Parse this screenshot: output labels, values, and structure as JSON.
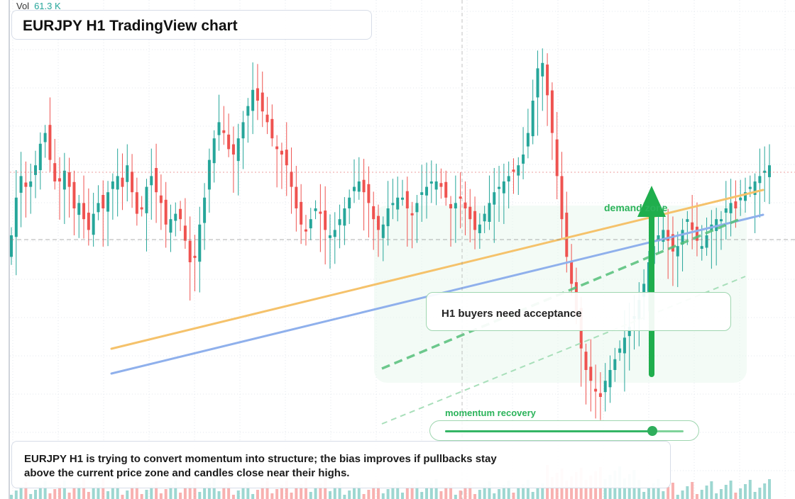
{
  "header": {
    "volume_label": "Vol",
    "volume_value": "61.3 K",
    "title": "EURJPY H1 TradingView chart"
  },
  "annotations": {
    "callout_text": "H1 buyers need acceptance",
    "zone_label": "demand zone",
    "momentum_label": "momentum recovery",
    "momentum_level": 0.87
  },
  "summary": {
    "text": "EURJPY H1 is trying to convert momentum into structure; the bias improves if pullbacks stay above the current price zone and candles close near their highs."
  },
  "colors": {
    "bull": "#26a69a",
    "bear": "#ef5350",
    "accent_green": "#2bb35a",
    "trend_orange": "#f5c26b",
    "trend_blue": "#8fb0ec"
  },
  "chart_data": {
    "type": "candlestick",
    "series_closes": [
      0.6,
      0.74,
      0.82,
      0.78,
      0.8,
      0.86,
      0.94,
      0.98,
      0.88,
      0.8,
      0.8,
      0.84,
      0.78,
      0.7,
      0.72,
      0.66,
      0.62,
      0.68,
      0.72,
      0.7,
      0.76,
      0.8,
      0.82,
      0.78,
      0.86,
      0.76,
      0.68,
      0.7,
      0.78,
      0.82,
      0.76,
      0.72,
      0.64,
      0.66,
      0.68,
      0.66,
      0.58,
      0.5,
      0.52,
      0.64,
      0.74,
      0.88,
      0.96,
      1.02,
      0.98,
      0.92,
      0.9,
      0.96,
      1.02,
      1.08,
      1.14,
      1.1,
      1.06,
      1.02,
      0.96,
      0.92,
      0.9,
      0.86,
      0.78,
      0.7,
      0.64,
      0.62,
      0.66,
      0.7,
      0.68,
      0.62,
      0.6,
      0.62,
      0.66,
      0.7,
      0.74,
      0.78,
      0.8,
      0.76,
      0.72,
      0.66,
      0.62,
      0.64,
      0.7,
      0.72,
      0.74,
      0.74,
      0.7,
      0.68,
      0.72,
      0.76,
      0.78,
      0.8,
      0.8,
      0.78,
      0.74,
      0.7,
      0.72,
      0.74,
      0.7,
      0.66,
      0.62,
      0.64,
      0.68,
      0.72,
      0.76,
      0.78,
      0.8,
      0.82,
      0.84,
      0.86,
      0.9,
      0.98,
      1.1,
      1.22,
      1.24,
      1.12,
      0.98,
      0.82,
      0.66,
      0.52,
      0.42,
      0.3,
      0.18,
      0.1,
      0.06,
      0.02,
      0.0,
      0.06,
      0.1,
      0.14,
      0.18,
      0.22,
      0.26,
      0.3,
      0.36,
      0.42,
      0.5,
      0.56,
      0.6,
      0.62,
      0.58,
      0.54,
      0.56,
      0.62,
      0.66,
      0.62,
      0.58,
      0.56,
      0.6,
      0.64,
      0.66,
      0.66,
      0.7,
      0.72,
      0.7,
      0.74,
      0.76,
      0.78,
      0.8,
      0.82,
      0.84,
      0.86
    ]
  }
}
